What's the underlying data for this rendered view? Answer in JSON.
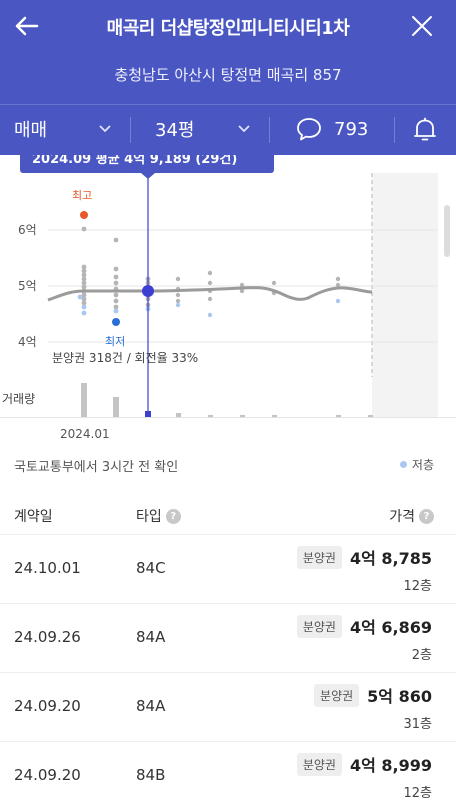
{
  "header": {
    "title": "매곡리 더샵탕정인피니티시티1차",
    "address": "충청남도 아산시 탕정면 매곡리 857",
    "trade_type": "매매",
    "area": "34평",
    "comment_count": "793"
  },
  "chart": {
    "tooltip": "2024.09 평균 4억 9,189 (29건)",
    "y_labels": [
      "6억",
      "5억",
      "4억"
    ],
    "max_label": "최고",
    "min_label": "최저",
    "presale_stat": "분양권 318건 / 회전율 33%",
    "volume_label": "거래량",
    "x_label": "2024.01"
  },
  "chart_data": {
    "type": "scatter",
    "ylabel": "",
    "xlabel": "",
    "y_ticks": [
      "4억",
      "5억",
      "6억"
    ],
    "x_ticks": [
      "2024.01"
    ],
    "series": [
      {
        "name": "",
        "description_note": "",
        "values": [
          4.9,
          4.93,
          4.95,
          4.93,
          4.95,
          4.96,
          4.93,
          4.95,
          4.72,
          4.95,
          4.9
        ]
      }
    ],
    "max_value": 6.2,
    "min_value": 4.35
  },
  "source": {
    "text": "국토교통부에서 3시간 전 확인",
    "legend_low_floor": "저층"
  },
  "table": {
    "headers": {
      "date": "계약일",
      "type": "타입",
      "price": "가격"
    },
    "rows": [
      {
        "date": "24.10.01",
        "type": "84C",
        "badge": "분양권",
        "price": "4억 8,785",
        "floor": "12층"
      },
      {
        "date": "24.09.26",
        "type": "84A",
        "badge": "분양권",
        "price": "4억 6,869",
        "floor": "2층"
      },
      {
        "date": "24.09.20",
        "type": "84A",
        "badge": "분양권",
        "price": "5억 860",
        "floor": "31층"
      },
      {
        "date": "24.09.20",
        "type": "84B",
        "badge": "분양권",
        "price": "4억 8,999",
        "floor": "12층"
      }
    ]
  },
  "colors": {
    "header_bg": "#4a56c1",
    "accent": "#3d3fd0",
    "max_dot": "#e8582c",
    "min_dot": "#2a6fd6"
  }
}
